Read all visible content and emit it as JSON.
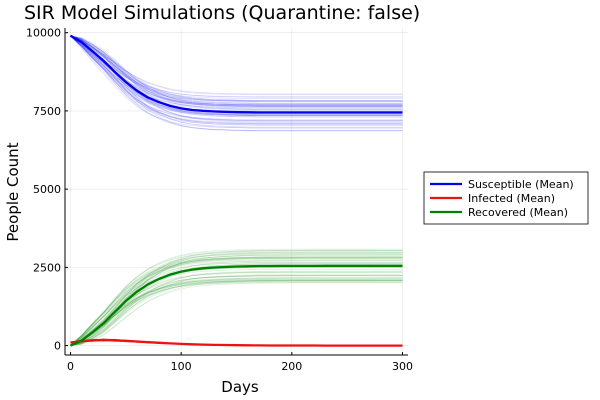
{
  "chart_data": {
    "type": "line",
    "title": "SIR Model Simulations (Quarantine: false)",
    "xlabel": "Days",
    "ylabel": "People Count",
    "xlim": [
      -5,
      305
    ],
    "ylim": [
      -300,
      10150
    ],
    "xticks": [
      0,
      100,
      200,
      300
    ],
    "yticks": [
      0,
      2500,
      5000,
      7500,
      10000
    ],
    "grid": true,
    "legend_position": "right",
    "x": [
      0,
      10,
      20,
      30,
      40,
      50,
      60,
      70,
      80,
      90,
      100,
      110,
      120,
      130,
      140,
      150,
      160,
      170,
      180,
      190,
      200,
      210,
      220,
      230,
      240,
      250,
      260,
      270,
      280,
      290,
      300
    ],
    "series": [
      {
        "name": "Susceptible (Mean)",
        "color": "#0000ee",
        "values": [
          9900,
          9700,
          9400,
          9100,
          8750,
          8420,
          8150,
          7930,
          7780,
          7660,
          7580,
          7530,
          7500,
          7480,
          7470,
          7460,
          7455,
          7450,
          7450,
          7450,
          7450,
          7450,
          7450,
          7450,
          7450,
          7450,
          7450,
          7450,
          7450,
          7450,
          7450
        ]
      },
      {
        "name": "Infected (Mean)",
        "color": "#ee1111",
        "values": [
          100,
          140,
          170,
          180,
          170,
          150,
          130,
          110,
          90,
          70,
          55,
          42,
          32,
          24,
          18,
          13,
          10,
          7,
          5,
          4,
          3,
          2,
          2,
          1,
          1,
          1,
          1,
          1,
          0,
          0,
          0
        ]
      },
      {
        "name": "Recovered (Mean)",
        "color": "#008000",
        "values": [
          0,
          160,
          430,
          720,
          1080,
          1430,
          1720,
          1960,
          2130,
          2270,
          2365,
          2430,
          2470,
          2495,
          2512,
          2527,
          2535,
          2543,
          2545,
          2546,
          2547,
          2548,
          2548,
          2549,
          2549,
          2549,
          2549,
          2549,
          2550,
          2550,
          2550
        ]
      }
    ]
  }
}
